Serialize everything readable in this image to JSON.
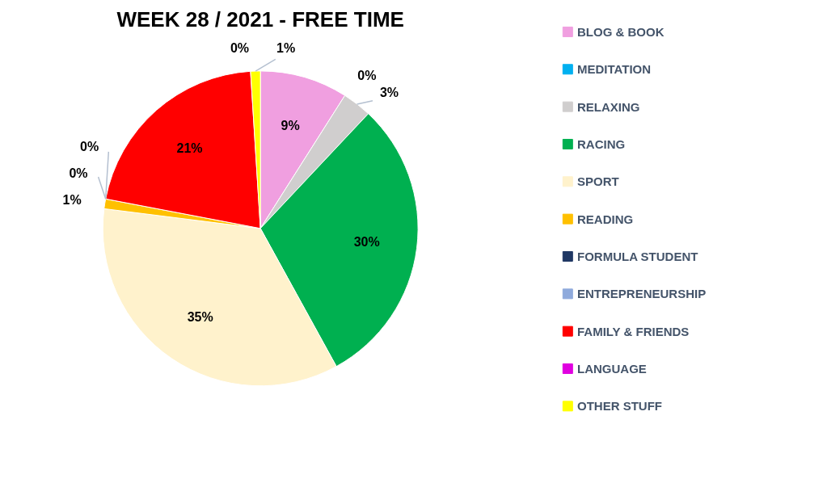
{
  "chart_data": {
    "type": "pie",
    "title": "WEEK 28 / 2021 - FREE TIME",
    "categories": [
      "BLOG & BOOK",
      "MEDITATION",
      "RELAXING",
      "RACING",
      "SPORT",
      "READING",
      "FORMULA STUDENT",
      "ENTREPRENEURSHIP",
      "FAMILY & FRIENDS",
      "LANGUAGE",
      "OTHER STUFF"
    ],
    "values": [
      9,
      0,
      3,
      30,
      35,
      1,
      0,
      0,
      21,
      0,
      1
    ],
    "colors": [
      "#f09fe0",
      "#00b0f0",
      "#d0cece",
      "#00b050",
      "#fff2cc",
      "#ffc000",
      "#203864",
      "#8faadc",
      "#ff0000",
      "#e000e0",
      "#ffff00"
    ],
    "value_labels": [
      "9%",
      "0%",
      "3%",
      "30%",
      "35%",
      "1%",
      "0%",
      "0%",
      "21%",
      "0%",
      "1%"
    ],
    "legend": "right"
  }
}
